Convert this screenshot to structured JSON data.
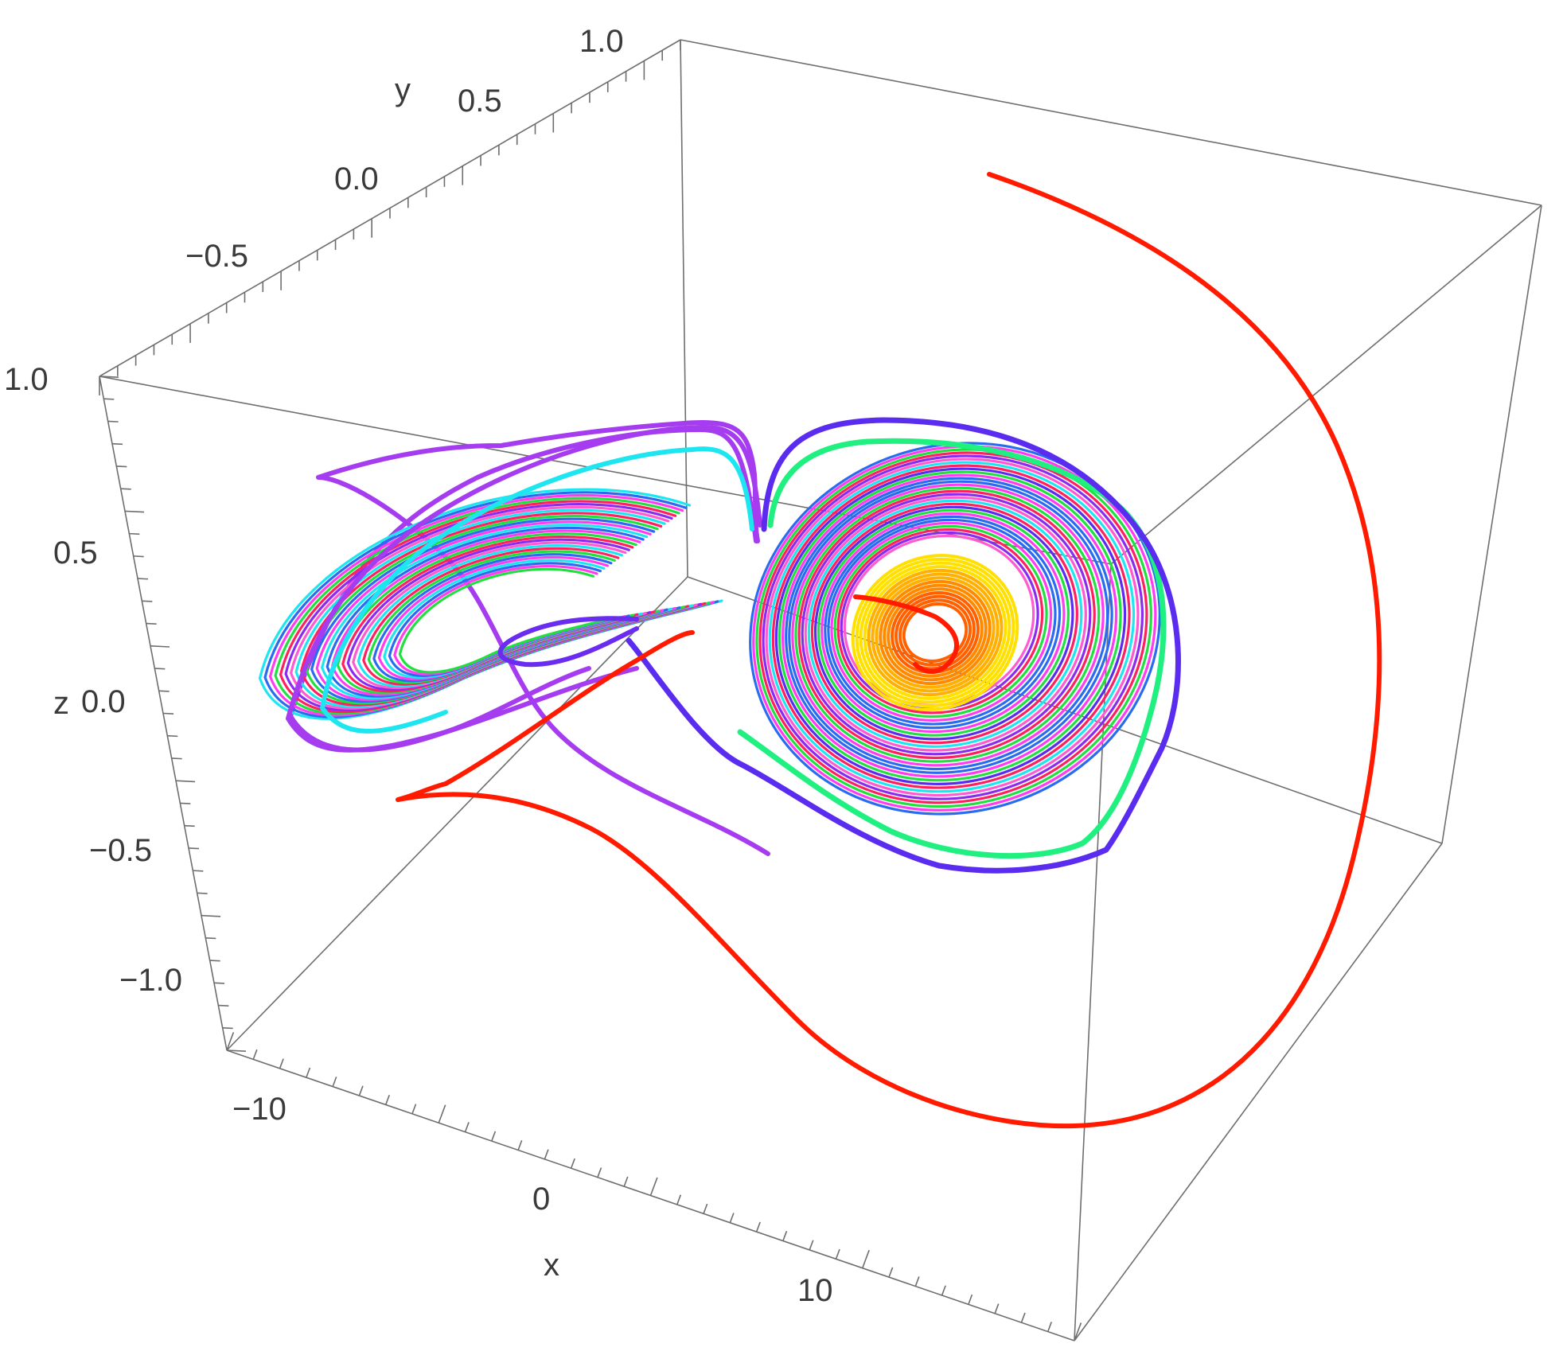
{
  "chart_data": {
    "type": "line",
    "dimensions": "3d",
    "title": "",
    "axes": {
      "x": {
        "label": "x",
        "ticks": [
          "−10",
          "0",
          "10"
        ]
      },
      "y": {
        "label": "y",
        "ticks": [
          "−0.5",
          "0.0",
          "0.5",
          "1.0"
        ]
      },
      "z": {
        "label": "z",
        "ticks": [
          "1.0",
          "0.5",
          "0.0",
          "−0.5",
          "−1.0"
        ]
      }
    },
    "box": true,
    "grid": false,
    "legend": "none",
    "attractor": {
      "description_colors": [
        "#a63cf0",
        "#1ee6f0",
        "#2a6cf0",
        "#ff3cf0",
        "#20e040",
        "#ff2060",
        "#8a2cf0",
        "#5a2cf0",
        "#20f080"
      ],
      "inner_colors": [
        "#ffe000",
        "#ffb000",
        "#ff8a00",
        "#ff6000"
      ],
      "outer_left_color": "#a63cf0",
      "outer_right_color": "#5a2cf0",
      "green_right_color": "#20f080"
    },
    "series": [
      {
        "color": "#ff1a00",
        "x": [
          7.5,
          8.5,
          9.5,
          10.5,
          11.3,
          11.9,
          12.2,
          12.1,
          11.6,
          10.6,
          9.2,
          7.5,
          5.5,
          3.5,
          1.5,
          -0.5,
          -2.2,
          -3.6,
          -4.6,
          -5.2,
          -5.3,
          -4.8,
          -3.6,
          -2.0,
          -0.3
        ],
        "z": [
          0.95,
          0.93,
          0.86,
          0.72,
          0.52,
          0.28,
          0.0,
          -0.3,
          -0.6,
          -0.85,
          -1.05,
          -1.18,
          -1.2,
          -1.12,
          -0.98,
          -0.82,
          -0.66,
          -0.52,
          -0.42,
          -0.36,
          -0.35,
          -0.33,
          -0.24,
          -0.1,
          0.05
        ]
      }
    ]
  }
}
